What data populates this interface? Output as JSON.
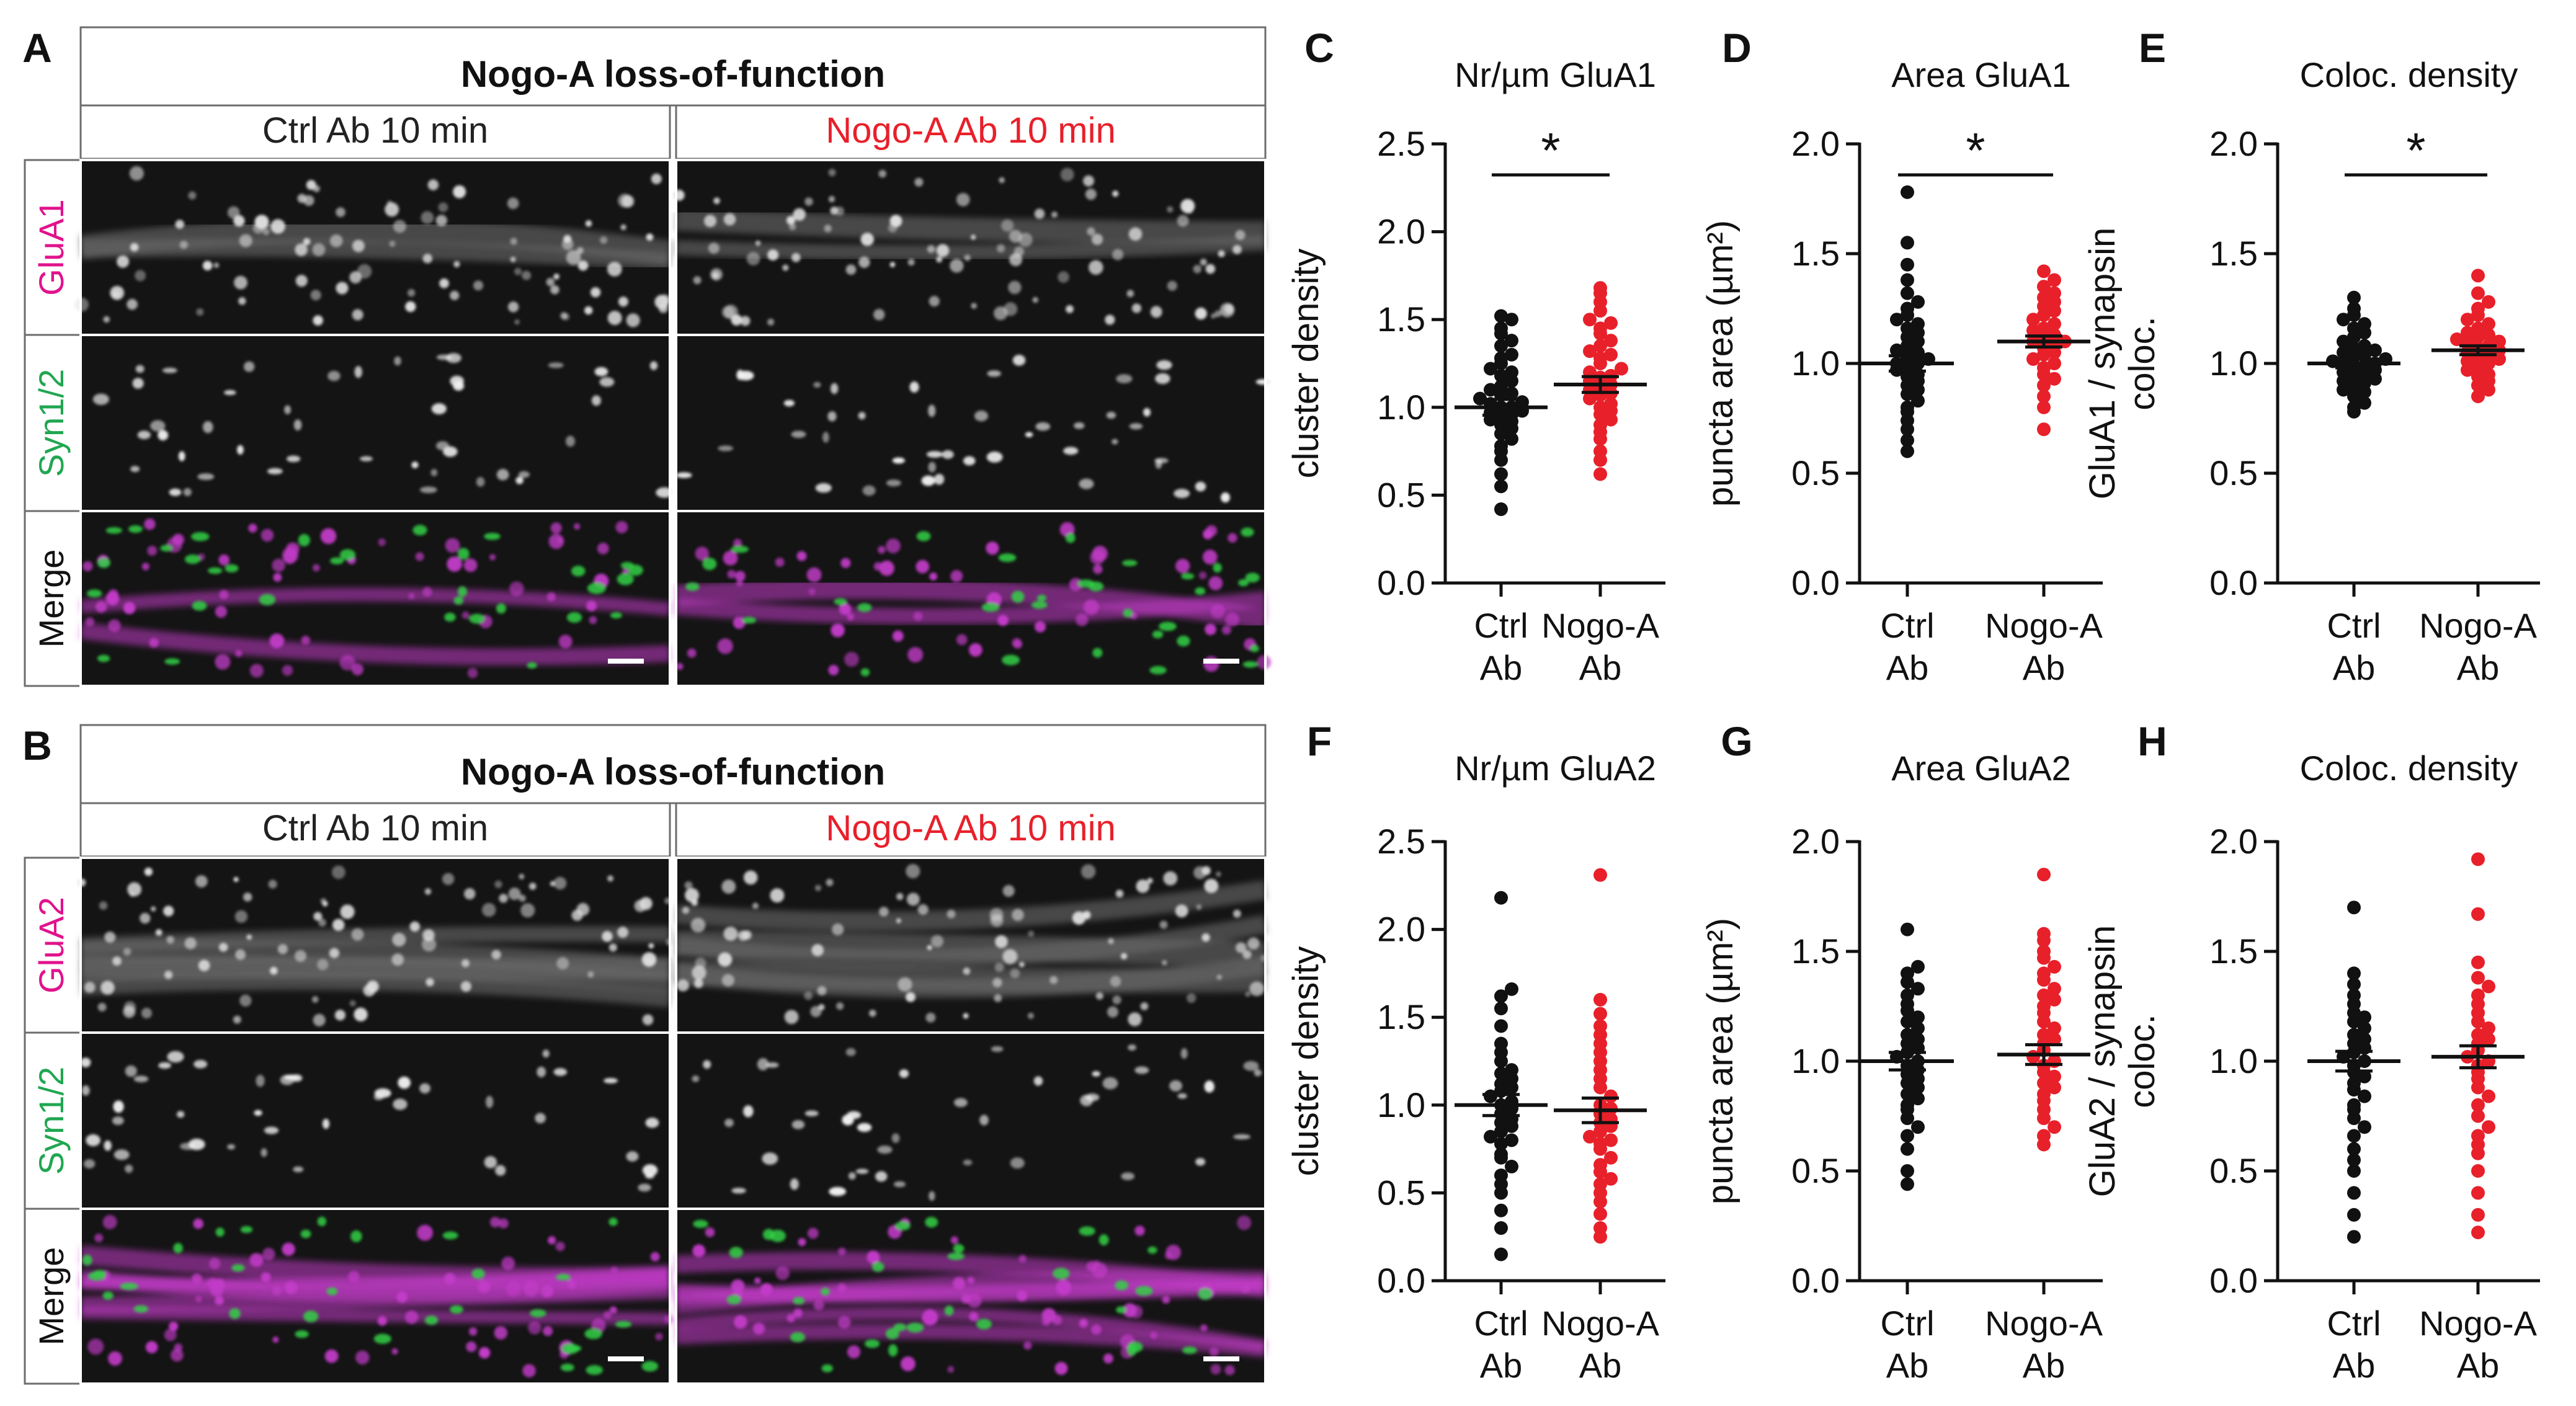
{
  "figure": {
    "panel_A": {
      "letter": "A",
      "header": "Nogo-A loss-of-function",
      "conditions": [
        "Ctrl Ab 10 min",
        "Nogo-A Ab 10 min"
      ],
      "channels": [
        "GluA1",
        "Syn1/2",
        "Merge"
      ]
    },
    "panel_B": {
      "letter": "B",
      "header": "Nogo-A loss-of-function",
      "conditions": [
        "Ctrl Ab 10 min",
        "Nogo-A Ab 10 min"
      ],
      "channels": [
        "GluA2",
        "Syn1/2",
        "Merge"
      ]
    }
  },
  "colors": {
    "ctrl": "#111111",
    "nogo": "#e8202a",
    "glu_label": "#e0138c",
    "syn_label": "#21a651",
    "magenta": "#c23cc8",
    "green": "#33d046"
  },
  "chart_data": [
    {
      "id": "C",
      "type": "scatter",
      "title": "Nr/µm GluA1",
      "ylabel": "cluster density",
      "ylim": [
        0,
        2.5
      ],
      "yticks": [
        "0.0",
        "0.5",
        "1.0",
        "1.5",
        "2.0",
        "2.5"
      ],
      "categories": [
        "Ctrl\nAb",
        "Nogo-A\nAb"
      ],
      "significance": "*",
      "series": [
        {
          "name": "Ctrl Ab",
          "mean": 1.0,
          "sem": 0.045,
          "values": [
            0.42,
            0.55,
            0.62,
            0.7,
            0.75,
            0.78,
            0.82,
            0.85,
            0.88,
            0.9,
            0.92,
            0.93,
            0.95,
            0.96,
            0.97,
            0.98,
            1.0,
            1.0,
            1.02,
            1.03,
            1.05,
            1.07,
            1.08,
            1.1,
            1.12,
            1.15,
            1.18,
            1.2,
            1.22,
            1.25,
            1.28,
            1.3,
            1.35,
            1.38,
            1.42,
            1.45,
            1.5,
            1.52
          ]
        },
        {
          "name": "Nogo-A Ab",
          "mean": 1.13,
          "sem": 0.045,
          "values": [
            0.62,
            0.7,
            0.75,
            0.82,
            0.86,
            0.9,
            0.93,
            0.96,
            0.98,
            1.0,
            1.02,
            1.05,
            1.07,
            1.08,
            1.1,
            1.12,
            1.13,
            1.15,
            1.17,
            1.18,
            1.2,
            1.22,
            1.25,
            1.28,
            1.3,
            1.32,
            1.35,
            1.38,
            1.42,
            1.45,
            1.48,
            1.5,
            1.55,
            1.6,
            1.65,
            1.68
          ]
        }
      ]
    },
    {
      "id": "D",
      "type": "scatter",
      "title": "Area GluA1",
      "ylabel": "puncta area (µm²)",
      "ylim": [
        0,
        2.0
      ],
      "yticks": [
        "0.0",
        "0.5",
        "1.0",
        "1.5",
        "2.0"
      ],
      "categories": [
        "Ctrl\nAb",
        "Nogo-A\nAb"
      ],
      "significance": "*",
      "series": [
        {
          "name": "Ctrl Ab",
          "mean": 1.0,
          "sem": 0.035,
          "values": [
            0.6,
            0.65,
            0.7,
            0.74,
            0.78,
            0.8,
            0.83,
            0.86,
            0.88,
            0.9,
            0.92,
            0.94,
            0.95,
            0.97,
            0.98,
            1.0,
            1.0,
            1.02,
            1.03,
            1.05,
            1.06,
            1.08,
            1.1,
            1.12,
            1.14,
            1.16,
            1.18,
            1.2,
            1.22,
            1.25,
            1.28,
            1.32,
            1.38,
            1.45,
            1.55,
            1.78
          ]
        },
        {
          "name": "Nogo-A Ab",
          "mean": 1.1,
          "sem": 0.025,
          "values": [
            0.7,
            0.8,
            0.85,
            0.9,
            0.93,
            0.95,
            0.98,
            1.0,
            1.02,
            1.04,
            1.05,
            1.07,
            1.08,
            1.1,
            1.1,
            1.12,
            1.13,
            1.15,
            1.16,
            1.18,
            1.2,
            1.22,
            1.24,
            1.26,
            1.28,
            1.3,
            1.32,
            1.35,
            1.38,
            1.42
          ]
        }
      ]
    },
    {
      "id": "E",
      "type": "scatter",
      "title": "Coloc. density",
      "ylabel": "GluA1 / synapsin\ncoloc.",
      "ylim": [
        0,
        2.0
      ],
      "yticks": [
        "0.0",
        "0.5",
        "1.0",
        "1.5",
        "2.0"
      ],
      "categories": [
        "Ctrl\nAb",
        "Nogo-A\nAb"
      ],
      "significance": "*",
      "series": [
        {
          "name": "Ctrl Ab",
          "mean": 1.0,
          "sem": 0.02,
          "values": [
            0.78,
            0.8,
            0.82,
            0.85,
            0.87,
            0.88,
            0.9,
            0.91,
            0.92,
            0.93,
            0.94,
            0.95,
            0.96,
            0.97,
            0.98,
            0.99,
            1.0,
            1.0,
            1.01,
            1.02,
            1.03,
            1.04,
            1.05,
            1.06,
            1.07,
            1.08,
            1.1,
            1.12,
            1.14,
            1.16,
            1.18,
            1.2,
            1.22,
            1.25,
            1.3
          ]
        },
        {
          "name": "Nogo-A Ab",
          "mean": 1.06,
          "sem": 0.02,
          "values": [
            0.85,
            0.88,
            0.9,
            0.92,
            0.94,
            0.95,
            0.97,
            0.98,
            1.0,
            1.01,
            1.02,
            1.03,
            1.04,
            1.05,
            1.06,
            1.07,
            1.08,
            1.09,
            1.1,
            1.11,
            1.12,
            1.13,
            1.14,
            1.16,
            1.18,
            1.2,
            1.22,
            1.25,
            1.28,
            1.32,
            1.4
          ]
        }
      ]
    },
    {
      "id": "F",
      "type": "scatter",
      "title": "Nr/µm GluA2",
      "ylabel": "cluster density",
      "ylim": [
        0,
        2.5
      ],
      "yticks": [
        "0.0",
        "0.5",
        "1.0",
        "1.5",
        "2.0",
        "2.5"
      ],
      "categories": [
        "Ctrl\nAb",
        "Nogo-A\nAb"
      ],
      "significance": "",
      "series": [
        {
          "name": "Ctrl Ab",
          "mean": 1.0,
          "sem": 0.06,
          "values": [
            0.15,
            0.3,
            0.4,
            0.5,
            0.55,
            0.6,
            0.65,
            0.7,
            0.72,
            0.78,
            0.8,
            0.82,
            0.85,
            0.88,
            0.9,
            0.92,
            0.95,
            0.98,
            1.0,
            1.02,
            1.05,
            1.08,
            1.1,
            1.12,
            1.15,
            1.18,
            1.2,
            1.25,
            1.3,
            1.35,
            1.45,
            1.55,
            1.62,
            1.66,
            2.18
          ]
        },
        {
          "name": "Nogo-A Ab",
          "mean": 0.97,
          "sem": 0.07,
          "values": [
            0.25,
            0.3,
            0.38,
            0.45,
            0.5,
            0.55,
            0.58,
            0.62,
            0.66,
            0.7,
            0.75,
            0.78,
            0.8,
            0.82,
            0.85,
            0.88,
            0.9,
            0.92,
            0.95,
            0.98,
            1.0,
            1.05,
            1.1,
            1.15,
            1.2,
            1.25,
            1.3,
            1.35,
            1.4,
            1.45,
            1.52,
            1.6,
            2.31
          ]
        }
      ]
    },
    {
      "id": "G",
      "type": "scatter",
      "title": "Area GluA2",
      "ylabel": "puncta area (µm²)",
      "ylim": [
        0,
        2.0
      ],
      "yticks": [
        "0.0",
        "0.5",
        "1.0",
        "1.5",
        "2.0"
      ],
      "categories": [
        "Ctrl\nAb",
        "Nogo-A\nAb"
      ],
      "significance": "",
      "series": [
        {
          "name": "Ctrl Ab",
          "mean": 1.0,
          "sem": 0.04,
          "values": [
            0.44,
            0.5,
            0.6,
            0.66,
            0.7,
            0.74,
            0.78,
            0.8,
            0.83,
            0.85,
            0.88,
            0.9,
            0.92,
            0.94,
            0.96,
            0.98,
            1.0,
            1.02,
            1.04,
            1.06,
            1.08,
            1.1,
            1.12,
            1.15,
            1.18,
            1.2,
            1.23,
            1.26,
            1.3,
            1.33,
            1.36,
            1.4,
            1.43,
            1.6
          ]
        },
        {
          "name": "Nogo-A Ab",
          "mean": 1.03,
          "sem": 0.045,
          "values": [
            0.62,
            0.66,
            0.7,
            0.74,
            0.78,
            0.82,
            0.85,
            0.88,
            0.9,
            0.93,
            0.95,
            0.98,
            1.0,
            1.02,
            1.05,
            1.08,
            1.1,
            1.12,
            1.15,
            1.18,
            1.22,
            1.25,
            1.28,
            1.3,
            1.33,
            1.37,
            1.4,
            1.43,
            1.47,
            1.5,
            1.55,
            1.58,
            1.85
          ]
        }
      ]
    },
    {
      "id": "H",
      "type": "scatter",
      "title": "Coloc. density",
      "ylabel": "GluA2 / synapsin\ncoloc.",
      "ylim": [
        0,
        2.0
      ],
      "yticks": [
        "0.0",
        "0.5",
        "1.0",
        "1.5",
        "2.0"
      ],
      "categories": [
        "Ctrl\nAb",
        "Nogo-A\nAb"
      ],
      "significance": "",
      "series": [
        {
          "name": "Ctrl Ab",
          "mean": 1.0,
          "sem": 0.045,
          "values": [
            0.2,
            0.3,
            0.4,
            0.5,
            0.55,
            0.6,
            0.66,
            0.7,
            0.74,
            0.78,
            0.8,
            0.84,
            0.87,
            0.9,
            0.93,
            0.95,
            0.98,
            1.0,
            1.02,
            1.04,
            1.06,
            1.08,
            1.1,
            1.12,
            1.15,
            1.18,
            1.2,
            1.22,
            1.26,
            1.3,
            1.35,
            1.4,
            1.7
          ]
        },
        {
          "name": "Nogo-A Ab",
          "mean": 1.02,
          "sem": 0.05,
          "values": [
            0.22,
            0.3,
            0.4,
            0.5,
            0.58,
            0.62,
            0.66,
            0.7,
            0.75,
            0.8,
            0.84,
            0.88,
            0.92,
            0.95,
            0.98,
            1.0,
            1.02,
            1.05,
            1.08,
            1.1,
            1.12,
            1.15,
            1.18,
            1.22,
            1.26,
            1.3,
            1.34,
            1.38,
            1.45,
            1.67,
            1.92
          ]
        }
      ]
    }
  ]
}
